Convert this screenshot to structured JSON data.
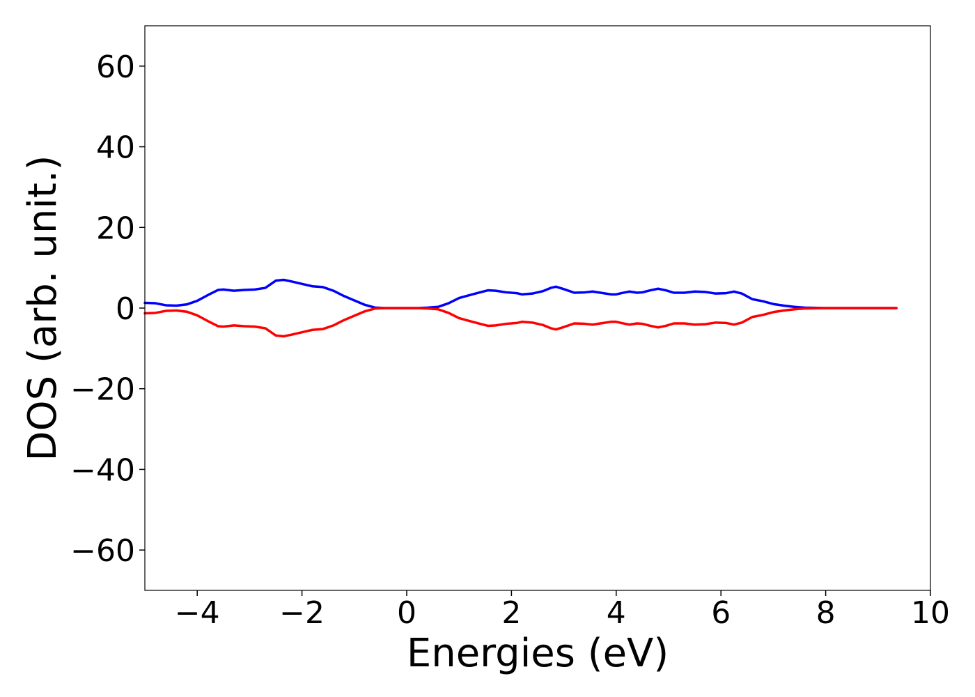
{
  "chart_data": {
    "type": "line",
    "title": "",
    "xlabel": "Energies (eV)",
    "ylabel": "DOS (arb. unit.)",
    "xlim": [
      -5,
      10
    ],
    "ylim": [
      -70,
      70
    ],
    "xticks": [
      -4,
      -2,
      0,
      2,
      4,
      6,
      8,
      10
    ],
    "xtick_labels": [
      "−4",
      "−2",
      "0",
      "2",
      "4",
      "6",
      "8",
      "10"
    ],
    "yticks": [
      -60,
      -40,
      -20,
      0,
      20,
      40,
      60
    ],
    "ytick_labels": [
      "−60",
      "−40",
      "−20",
      "0",
      "20",
      "40",
      "60"
    ],
    "grid": false,
    "legend": "none",
    "series": [
      {
        "color": "#0000ff",
        "x": [
          -5.0,
          -4.8,
          -4.6,
          -4.4,
          -4.2,
          -4.0,
          -3.8,
          -3.6,
          -3.5,
          -3.3,
          -3.1,
          -2.9,
          -2.7,
          -2.5,
          -2.35,
          -2.2,
          -2.0,
          -1.8,
          -1.6,
          -1.4,
          -1.2,
          -1.0,
          -0.8,
          -0.6,
          -0.4,
          -0.2,
          0.0,
          0.2,
          0.4,
          0.6,
          0.8,
          1.0,
          1.2,
          1.4,
          1.55,
          1.7,
          1.9,
          2.1,
          2.2,
          2.4,
          2.6,
          2.75,
          2.85,
          3.0,
          3.2,
          3.4,
          3.55,
          3.7,
          3.9,
          4.0,
          4.1,
          4.25,
          4.4,
          4.5,
          4.65,
          4.8,
          4.95,
          5.1,
          5.3,
          5.5,
          5.7,
          5.9,
          6.1,
          6.25,
          6.4,
          6.6,
          6.8,
          7.0,
          7.2,
          7.4,
          7.6,
          8.0,
          8.5,
          9.0,
          9.35
        ],
        "y": [
          1.3,
          1.2,
          0.7,
          0.6,
          0.9,
          1.8,
          3.2,
          4.5,
          4.6,
          4.3,
          4.5,
          4.6,
          5.0,
          6.8,
          7.0,
          6.6,
          6.0,
          5.4,
          5.2,
          4.3,
          3.0,
          1.9,
          0.8,
          0.1,
          0.0,
          0.0,
          0.0,
          0.0,
          0.1,
          0.3,
          1.2,
          2.5,
          3.2,
          3.9,
          4.4,
          4.3,
          3.9,
          3.7,
          3.4,
          3.6,
          4.2,
          5.0,
          5.3,
          4.7,
          3.8,
          3.9,
          4.1,
          3.8,
          3.4,
          3.4,
          3.7,
          4.1,
          3.8,
          3.9,
          4.4,
          4.8,
          4.4,
          3.8,
          3.8,
          4.1,
          4.0,
          3.6,
          3.7,
          4.1,
          3.6,
          2.2,
          1.7,
          1.0,
          0.6,
          0.3,
          0.1,
          0.0,
          0.0,
          0.0,
          0.0
        ]
      },
      {
        "color": "#ff0000",
        "x": [
          -5.0,
          -4.8,
          -4.6,
          -4.4,
          -4.2,
          -4.0,
          -3.8,
          -3.6,
          -3.5,
          -3.3,
          -3.1,
          -2.9,
          -2.7,
          -2.5,
          -2.35,
          -2.2,
          -2.0,
          -1.8,
          -1.6,
          -1.4,
          -1.2,
          -1.0,
          -0.8,
          -0.6,
          -0.4,
          -0.2,
          0.0,
          0.2,
          0.4,
          0.6,
          0.8,
          1.0,
          1.2,
          1.4,
          1.55,
          1.7,
          1.9,
          2.1,
          2.2,
          2.4,
          2.6,
          2.75,
          2.85,
          3.0,
          3.2,
          3.4,
          3.55,
          3.7,
          3.9,
          4.0,
          4.1,
          4.25,
          4.4,
          4.5,
          4.65,
          4.8,
          4.95,
          5.1,
          5.3,
          5.5,
          5.7,
          5.9,
          6.1,
          6.25,
          6.4,
          6.6,
          6.8,
          7.0,
          7.2,
          7.4,
          7.6,
          8.0,
          8.5,
          9.0,
          9.35
        ],
        "y": [
          -1.3,
          -1.2,
          -0.7,
          -0.6,
          -0.9,
          -1.8,
          -3.2,
          -4.5,
          -4.6,
          -4.3,
          -4.5,
          -4.6,
          -5.0,
          -6.8,
          -7.0,
          -6.6,
          -6.0,
          -5.4,
          -5.2,
          -4.3,
          -3.0,
          -1.9,
          -0.8,
          -0.1,
          0.0,
          0.0,
          0.0,
          0.0,
          -0.1,
          -0.3,
          -1.2,
          -2.5,
          -3.2,
          -3.9,
          -4.4,
          -4.3,
          -3.9,
          -3.7,
          -3.4,
          -3.6,
          -4.2,
          -5.0,
          -5.3,
          -4.7,
          -3.8,
          -3.9,
          -4.1,
          -3.8,
          -3.4,
          -3.4,
          -3.7,
          -4.1,
          -3.8,
          -3.9,
          -4.4,
          -4.8,
          -4.4,
          -3.8,
          -3.8,
          -4.1,
          -4.0,
          -3.6,
          -3.7,
          -4.1,
          -3.6,
          -2.2,
          -1.7,
          -1.0,
          -0.6,
          -0.3,
          -0.1,
          0.0,
          0.0,
          0.0,
          0.0
        ]
      }
    ]
  }
}
